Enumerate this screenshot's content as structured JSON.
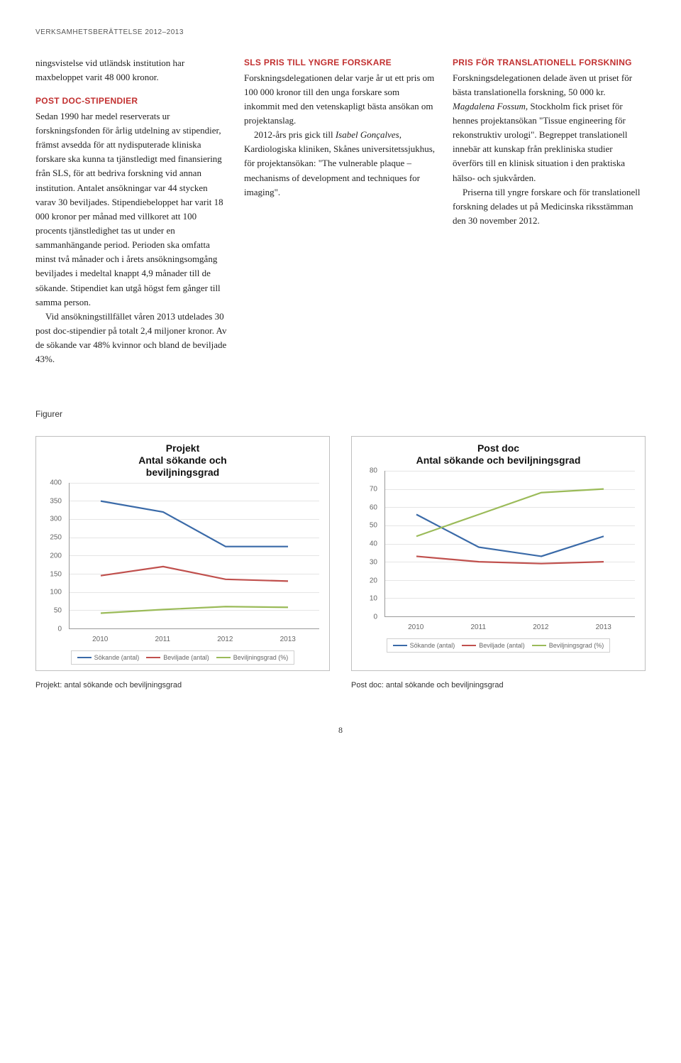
{
  "header": "VERKSAMHETSBERÄTTELSE 2012–2013",
  "col1": {
    "intro": "ningsvistelse vid utländsk institution har maxbeloppet varit 48 000 kronor.",
    "h1": "POST DOC-STIPENDIER",
    "p1": "Sedan 1990 har medel reserverats ur forskningsfonden för årlig utdelning av stipendier, främst avsedda för att nydisputerade kliniska forskare ska kunna ta tjänstledigt med finansiering från SLS, för att bedriva forskning vid annan institution. Antalet ansökningar var 44 stycken varav 30 beviljades. Stipendiebeloppet har varit 18 000 kronor per månad med villkoret att 100 procents tjänstledighet tas ut under en sammanhängande period. Perioden ska omfatta minst två månader och i årets ansökningsomgång beviljades i medeltal knappt 4,9 månader till de sökande. Stipendiet kan utgå högst fem gånger till samma person.",
    "p2": "Vid ansökningstillfället våren 2013 utdelades 30 post doc-stipendier på totalt 2,4 miljoner kronor. Av de sökande var 48% kvinnor och bland de beviljade 43%."
  },
  "col2": {
    "h1": "SLS PRIS TILL YNGRE FORSKARE",
    "p1": "Forskningsdelegationen delar varje år ut ett pris om 100 000 kronor till den unga forskare som inkommit med den vetenskapligt bästa ansökan om projektanslag.",
    "p2a": "2012-års pris gick till ",
    "p2_em": "Isabel Gonçalves",
    "p2b": ", Kardiologiska kliniken, Skånes universitetssjukhus, för projektansökan: \"The vulnerable plaque – mechanisms of development and techniques for imaging\"."
  },
  "col3": {
    "h1": "PRIS FÖR TRANSLATIONELL FORSKNING",
    "p1a": "Forskningsdelegationen delade även ut priset för bästa translationella forskning, 50 000 kr. ",
    "p1_em": "Magdalena Fossum",
    "p1b": ", Stockholm fick priset för hennes projektansökan \"Tissue engineering för rekonstruktiv urologi\". Begreppet translationell innebär att kunskap från prekliniska studier överförs till en klinisk situation i den praktiska hälso- och sjukvården.",
    "p2": "Priserna till yngre forskare och för translationell forskning delades ut på Medicinska riksstämman den 30 november 2012."
  },
  "figurer": "Figurer",
  "chart1": {
    "title_l1": "Projekt",
    "title_l2": "Antal sökande och",
    "title_l3": "beviljningsgrad",
    "type": "line",
    "x_labels": [
      "2010",
      "2011",
      "2012",
      "2013"
    ],
    "ylim": [
      0,
      400
    ],
    "ytick_step": 50,
    "grid_color": "#e5e5e5",
    "axis_color": "#9a9a9a",
    "background_color": "#ffffff",
    "series": [
      {
        "name": "Sökande (antal)",
        "color": "#3a6aa8",
        "values": [
          350,
          320,
          225,
          225
        ]
      },
      {
        "name": "Beviljade (antal)",
        "color": "#c0504d",
        "values": [
          145,
          170,
          135,
          130
        ]
      },
      {
        "name": "Beviljningsgrad (%)",
        "color": "#9bbb59",
        "values": [
          42,
          52,
          60,
          58
        ]
      }
    ],
    "line_width": 2.2,
    "tick_fontsize": 10,
    "title_fontsize": 14
  },
  "chart2": {
    "title_l1": "Post doc",
    "title_l2": "Antal sökande och beviljningsgrad",
    "type": "line",
    "x_labels": [
      "2010",
      "2011",
      "2012",
      "2013"
    ],
    "ylim": [
      0,
      80
    ],
    "ytick_step": 10,
    "grid_color": "#e5e5e5",
    "axis_color": "#9a9a9a",
    "background_color": "#ffffff",
    "series": [
      {
        "name": "Sökande (antal)",
        "color": "#3a6aa8",
        "values": [
          56,
          38,
          33,
          44
        ]
      },
      {
        "name": "Beviljade (antal)",
        "color": "#c0504d",
        "values": [
          33,
          30,
          29,
          30
        ]
      },
      {
        "name": "Beviljningsgrad (%)",
        "color": "#9bbb59",
        "values": [
          44,
          56,
          68,
          70
        ]
      }
    ],
    "line_width": 2.2,
    "tick_fontsize": 10,
    "title_fontsize": 14
  },
  "caption1": "Projekt: antal sökande och beviljningsgrad",
  "caption2": "Post doc: antal sökande och beviljningsgrad",
  "page_number": "8",
  "legend_labels": {
    "sokande": "Sökande (antal)",
    "beviljade": "Beviljade (antal)",
    "grad": "Beviljningsgrad (%)"
  }
}
